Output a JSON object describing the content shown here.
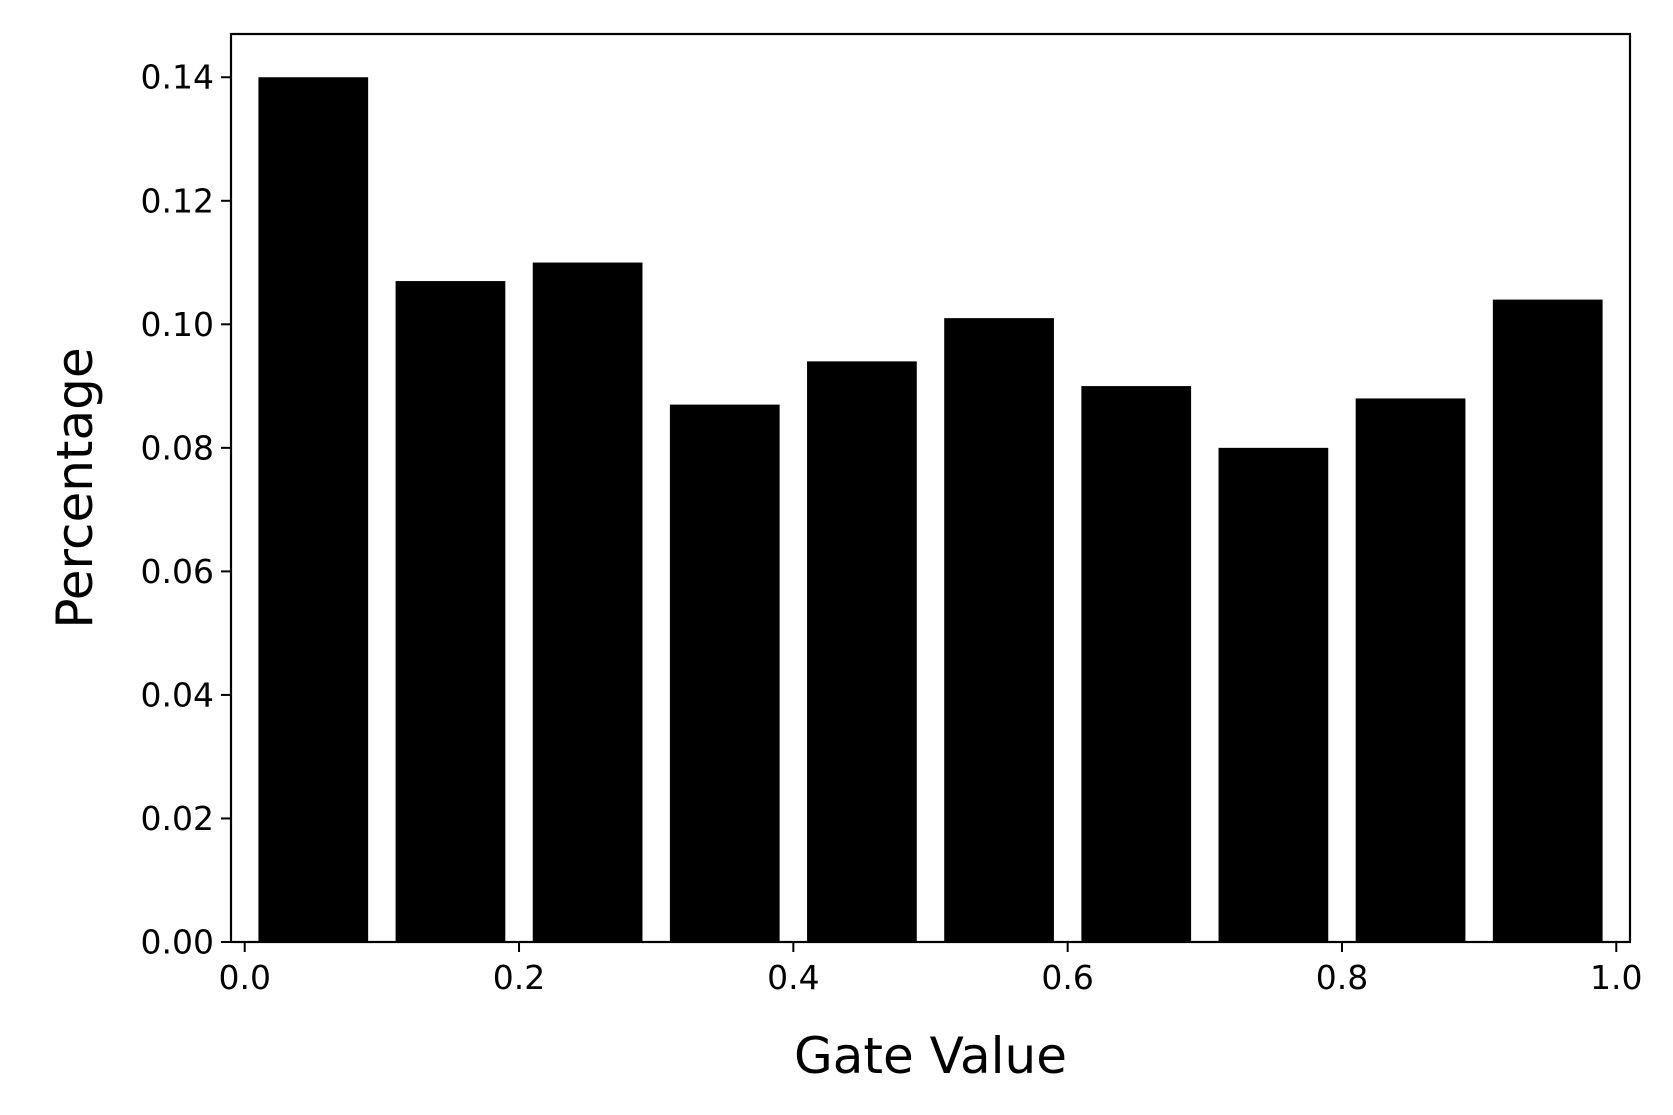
{
  "chart_data": {
    "type": "bar",
    "title": "",
    "xlabel": "Gate Value",
    "ylabel": "Percentage",
    "bars": [
      {
        "x_start": 0.0,
        "x_end": 0.1,
        "value": 0.14
      },
      {
        "x_start": 0.1,
        "x_end": 0.2,
        "value": 0.107
      },
      {
        "x_start": 0.2,
        "x_end": 0.3,
        "value": 0.11
      },
      {
        "x_start": 0.3,
        "x_end": 0.4,
        "value": 0.087
      },
      {
        "x_start": 0.4,
        "x_end": 0.5,
        "value": 0.094
      },
      {
        "x_start": 0.5,
        "x_end": 0.6,
        "value": 0.101
      },
      {
        "x_start": 0.6,
        "x_end": 0.7,
        "value": 0.09
      },
      {
        "x_start": 0.7,
        "x_end": 0.8,
        "value": 0.08
      },
      {
        "x_start": 0.8,
        "x_end": 0.9,
        "value": 0.088
      },
      {
        "x_start": 0.9,
        "x_end": 1.0,
        "value": 0.104
      }
    ],
    "xlim": [
      -0.01,
      1.01
    ],
    "ylim": [
      0,
      0.147
    ],
    "x_ticks": [
      0.0,
      0.2,
      0.4,
      0.6,
      0.8,
      1.0
    ],
    "x_tick_labels": [
      "0.0",
      "0.2",
      "0.4",
      "0.6",
      "0.8",
      "1.0"
    ],
    "y_ticks": [
      0.0,
      0.02,
      0.04,
      0.06,
      0.08,
      0.1,
      0.12,
      0.14
    ],
    "y_tick_labels": [
      "0.00",
      "0.02",
      "0.04",
      "0.06",
      "0.08",
      "0.10",
      "0.12",
      "0.14"
    ],
    "bar_color": "#000000",
    "grid": false,
    "legend": false
  }
}
